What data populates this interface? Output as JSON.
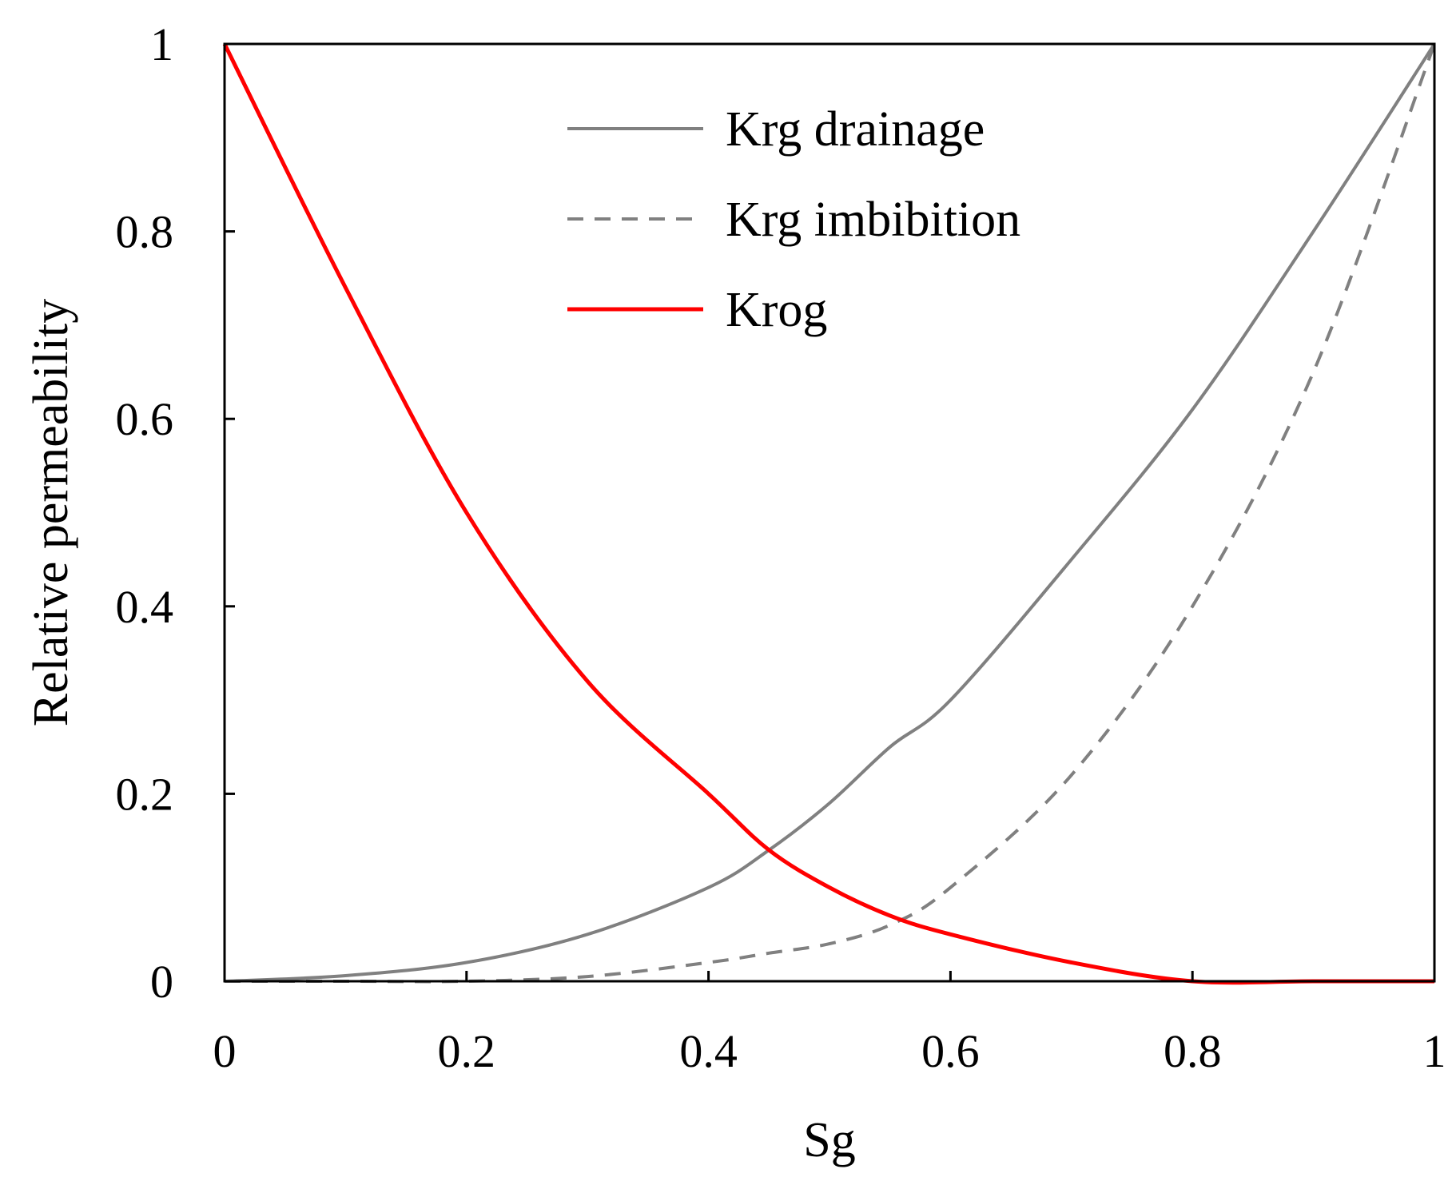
{
  "chart_data": {
    "type": "line",
    "title": "",
    "xlabel": "Sg",
    "ylabel": "Relative permeability",
    "xlim": [
      0,
      1
    ],
    "ylim": [
      0,
      1
    ],
    "xticks": [
      0,
      0.2,
      0.4,
      0.6,
      0.8,
      1
    ],
    "yticks": [
      0,
      0.2,
      0.4,
      0.6,
      0.8,
      1
    ],
    "xtick_labels": [
      "0",
      "0.2",
      "0.4",
      "0.6",
      "0.8",
      "1"
    ],
    "ytick_labels": [
      "0",
      "0.2",
      "0.4",
      "0.6",
      "0.8",
      "1"
    ],
    "grid": false,
    "legend_position": "top-center",
    "x": [
      0,
      0.1,
      0.2,
      0.3,
      0.4,
      0.45,
      0.5,
      0.55,
      0.6,
      0.7,
      0.8,
      0.9,
      1
    ],
    "series": [
      {
        "name": "Krg drainage",
        "color": "#808080",
        "style": "solid",
        "values": [
          0,
          0.006,
          0.02,
          0.05,
          0.1,
          0.14,
          0.19,
          0.25,
          0.3,
          0.45,
          0.61,
          0.8,
          1
        ]
      },
      {
        "name": "Krg imbibition",
        "color": "#808080",
        "style": "dashed",
        "values": [
          0,
          0,
          0,
          0.005,
          0.02,
          0.03,
          0.04,
          0.06,
          0.1,
          0.22,
          0.4,
          0.65,
          1
        ]
      },
      {
        "name": "Krog",
        "color": "#ff0000",
        "style": "solid",
        "values": [
          1,
          0.74,
          0.5,
          0.32,
          0.2,
          0.14,
          0.1,
          0.07,
          0.05,
          0.02,
          0,
          0,
          0
        ]
      }
    ]
  }
}
